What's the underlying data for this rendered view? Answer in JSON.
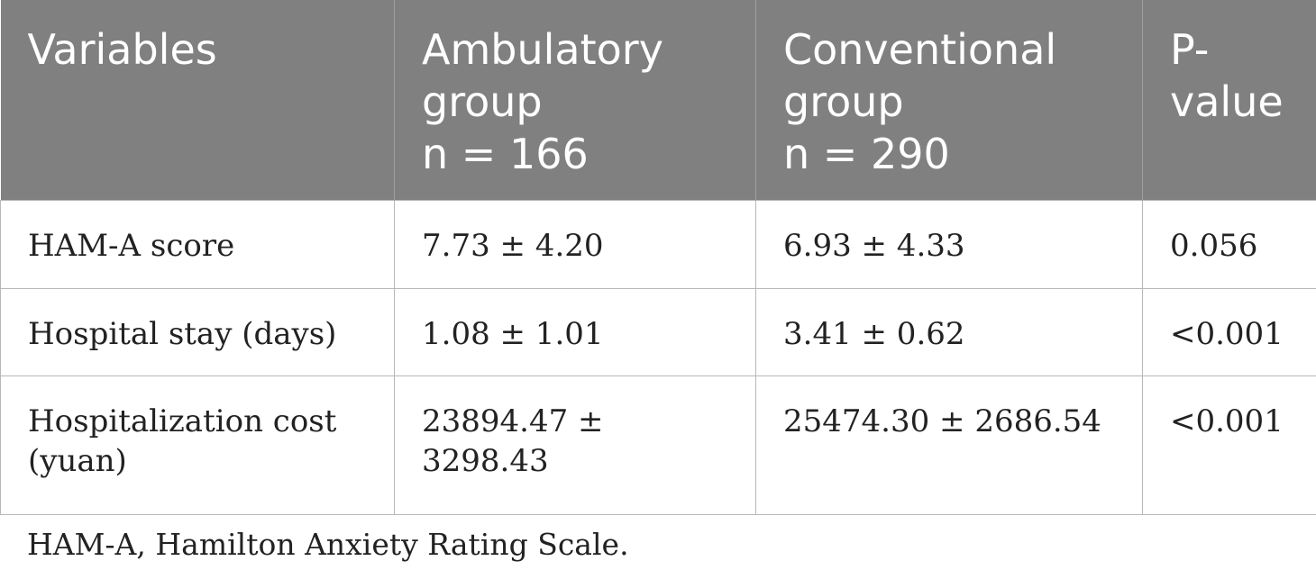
{
  "table": {
    "headers": [
      {
        "lines": [
          "Variables"
        ]
      },
      {
        "lines": [
          "Ambulatory",
          "group",
          "n = 166"
        ]
      },
      {
        "lines": [
          "Conventional",
          "group",
          "n = 290"
        ]
      },
      {
        "lines": [
          "P-",
          "value"
        ]
      }
    ],
    "rows": [
      {
        "variable": [
          "HAM-A score"
        ],
        "ambulatory": "7.73 ± 4.20",
        "conventional": "6.93 ± 4.33",
        "p_value": "0.056"
      },
      {
        "variable": [
          "Hospital stay (days)"
        ],
        "ambulatory": "1.08 ± 1.01",
        "conventional": "3.41 ± 0.62",
        "p_value": "<0.001"
      },
      {
        "variable": [
          "Hospitalization cost",
          "(yuan)"
        ],
        "ambulatory": "23894.47 ± 3298.43",
        "conventional": "25474.30 ± 2686.54",
        "p_value": "<0.001"
      }
    ]
  },
  "footnote": "HAM-A, Hamilton Anxiety Rating Scale.",
  "colors": {
    "header_bg": "#808080",
    "header_text": "#ffffff",
    "body_text": "#222222",
    "grid_line": "#b8b8b8"
  }
}
